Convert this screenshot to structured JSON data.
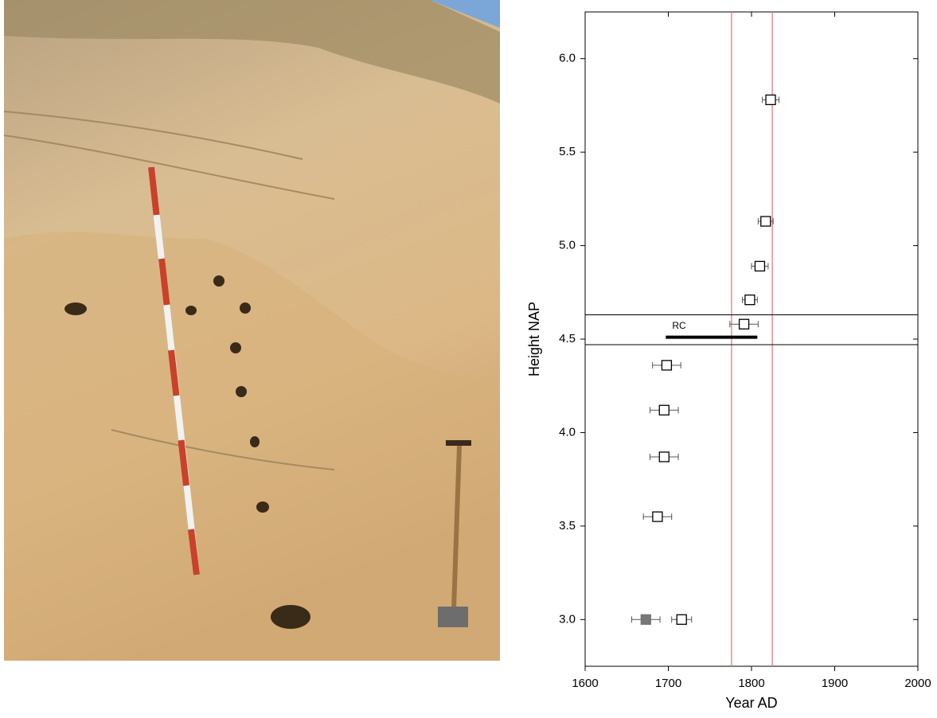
{
  "chart_data": {
    "type": "scatter",
    "xlabel": "Year AD",
    "ylabel": "Height NAP",
    "xlim": [
      1600,
      2000
    ],
    "ylim": [
      2.75,
      6.25
    ],
    "xticks": [
      1600,
      1700,
      1800,
      1900,
      2000
    ],
    "yticks": [
      {
        "value": 3,
        "label": "3.0"
      },
      {
        "value": 3.5,
        "label": "3.5"
      },
      {
        "value": 4,
        "label": "4.0"
      },
      {
        "value": 4.5,
        "label": "4.5"
      },
      {
        "value": 5,
        "label": "5.0"
      },
      {
        "value": 5.5,
        "label": "5.5"
      },
      {
        "value": 6,
        "label": "6.0"
      }
    ],
    "series": [
      {
        "color": "#000000",
        "filled": false,
        "x": [
          1823,
          1817,
          1810,
          1798,
          1791,
          1698,
          1695,
          1695,
          1687,
          1716
        ],
        "values": [
          5.78,
          5.13,
          4.89,
          4.71,
          4.58,
          4.36,
          4.12,
          3.87,
          3.55,
          3.0
        ],
        "xerr": [
          10,
          9,
          10,
          9,
          17,
          17,
          17,
          17,
          17,
          12
        ]
      },
      {
        "color": "#777777",
        "filled": true,
        "x": [
          1673
        ],
        "values": [
          3.0
        ],
        "xerr": [
          17
        ]
      }
    ],
    "vlines": {
      "color": "#e87070",
      "x": [
        1776,
        1825
      ]
    },
    "hlines": {
      "color": "#000000",
      "y": [
        4.63,
        4.47
      ]
    },
    "range_bar": {
      "label": "RC",
      "x": [
        1697,
        1807
      ],
      "y": 4.51
    }
  }
}
